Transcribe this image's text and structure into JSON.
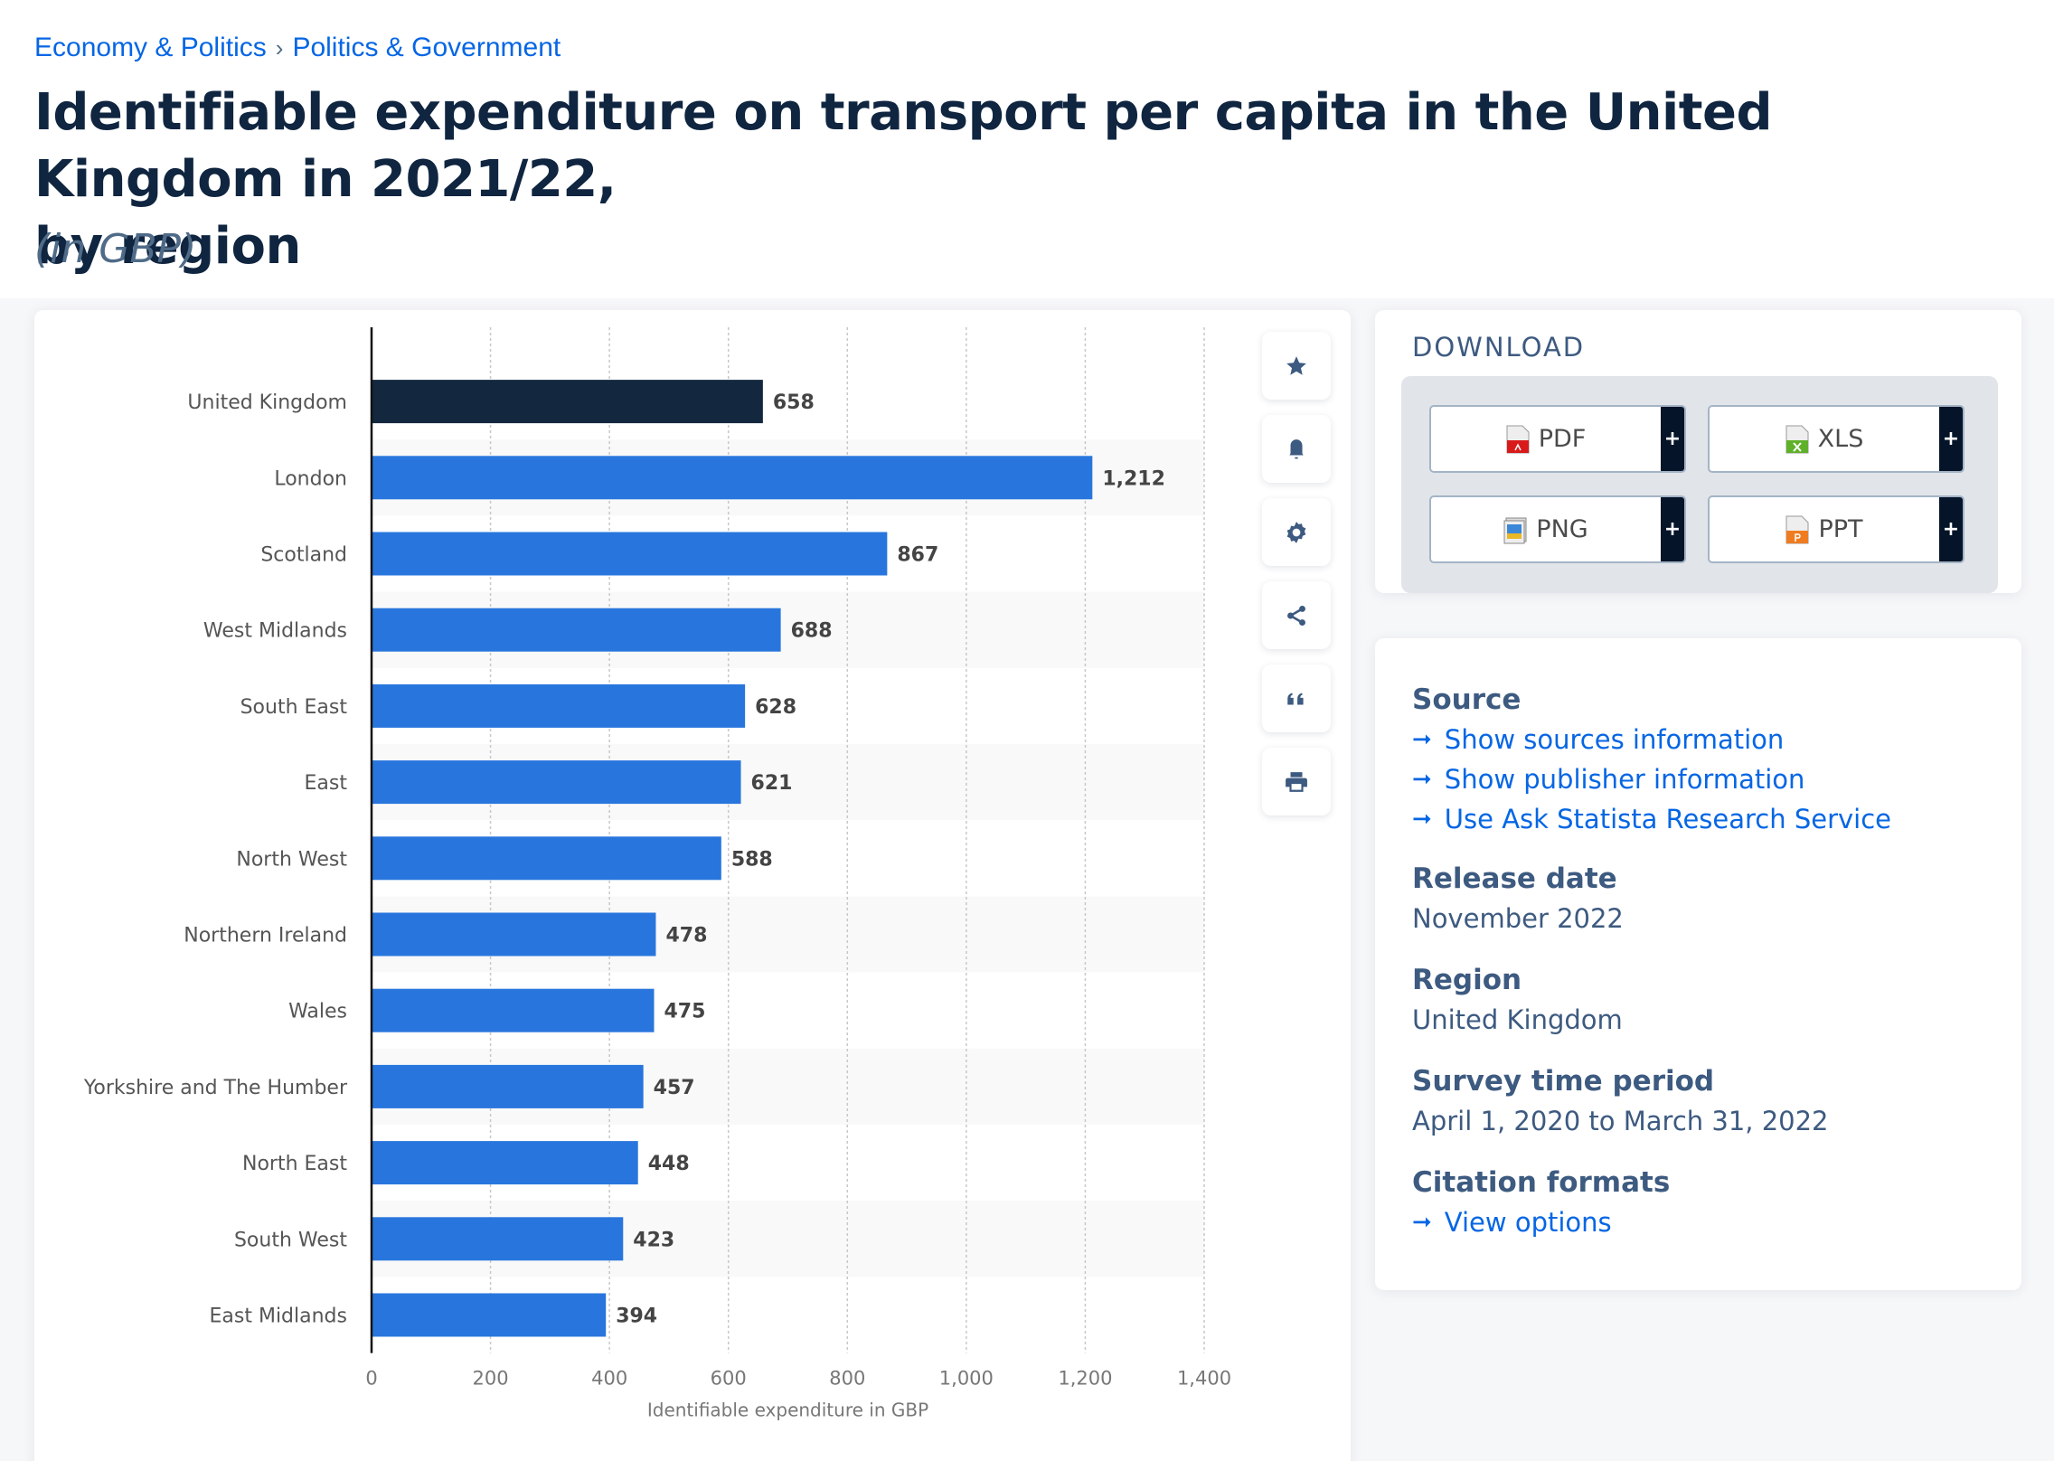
{
  "breadcrumb": {
    "items": [
      "Economy & Politics",
      "Politics & Government"
    ],
    "separator": "›"
  },
  "header": {
    "title_line1": "Identifiable expenditure on transport per capita in the United Kingdom in 2021/22,",
    "title_line2": "by region",
    "subtitle": "(in GBP)"
  },
  "toolbar": {
    "buttons": [
      {
        "icon": "star-icon",
        "label": "Favorite"
      },
      {
        "icon": "bell-icon",
        "label": "Notifications"
      },
      {
        "icon": "gear-icon",
        "label": "Settings"
      },
      {
        "icon": "share-icon",
        "label": "Share"
      },
      {
        "icon": "quote-icon",
        "label": "Cite"
      },
      {
        "icon": "print-icon",
        "label": "Print"
      }
    ]
  },
  "download": {
    "title": "DOWNLOAD",
    "buttons": [
      {
        "label": "PDF",
        "icon": "pdf-file-icon",
        "color": "#d91a1a",
        "plus": "+"
      },
      {
        "label": "XLS",
        "icon": "xls-file-icon",
        "color": "#5fb129",
        "plus": "+"
      },
      {
        "label": "PNG",
        "icon": "png-file-icon",
        "color": "#3c88d8",
        "plus": "+"
      },
      {
        "label": "PPT",
        "icon": "ppt-file-icon",
        "color": "#f07c21",
        "plus": "+"
      }
    ]
  },
  "info": {
    "source_label": "Source",
    "source_links": [
      "Show sources information",
      "Show publisher information",
      "Use Ask Statista Research Service"
    ],
    "release_label": "Release date",
    "release_value": "November 2022",
    "region_label": "Region",
    "region_value": "United Kingdom",
    "survey_label": "Survey time period",
    "survey_value": "April 1, 2020 to March 31, 2022",
    "citation_label": "Citation formats",
    "citation_link": "View options",
    "arrow": "➞"
  },
  "colors": {
    "highlight_bar": "#13283f",
    "bar": "#2876dd",
    "link": "#0666e4",
    "heading": "#0f2540"
  },
  "chart_data": {
    "type": "bar",
    "orientation": "horizontal",
    "categories": [
      "United Kingdom",
      "London",
      "Scotland",
      "West Midlands",
      "South East",
      "East",
      "North West",
      "Northern Ireland",
      "Wales",
      "Yorkshire and The Humber",
      "North East",
      "South West",
      "East Midlands"
    ],
    "values": [
      658,
      1212,
      867,
      688,
      628,
      621,
      588,
      478,
      475,
      457,
      448,
      423,
      394
    ],
    "value_labels": [
      "658",
      "1,212",
      "867",
      "688",
      "628",
      "621",
      "588",
      "478",
      "475",
      "457",
      "448",
      "423",
      "394"
    ],
    "highlighted_category": "United Kingdom",
    "title": "Identifiable expenditure on transport per capita in the United Kingdom in 2021/22, by region",
    "xlabel": "Identifiable expenditure in GBP",
    "ylabel": "",
    "xlim": [
      0,
      1400
    ],
    "xticks": [
      0,
      200,
      400,
      600,
      800,
      1000,
      1200,
      1400
    ],
    "xtick_labels": [
      "0",
      "200",
      "400",
      "600",
      "800",
      "1,000",
      "1,200",
      "1,400"
    ],
    "grid": true,
    "legend": "none"
  }
}
